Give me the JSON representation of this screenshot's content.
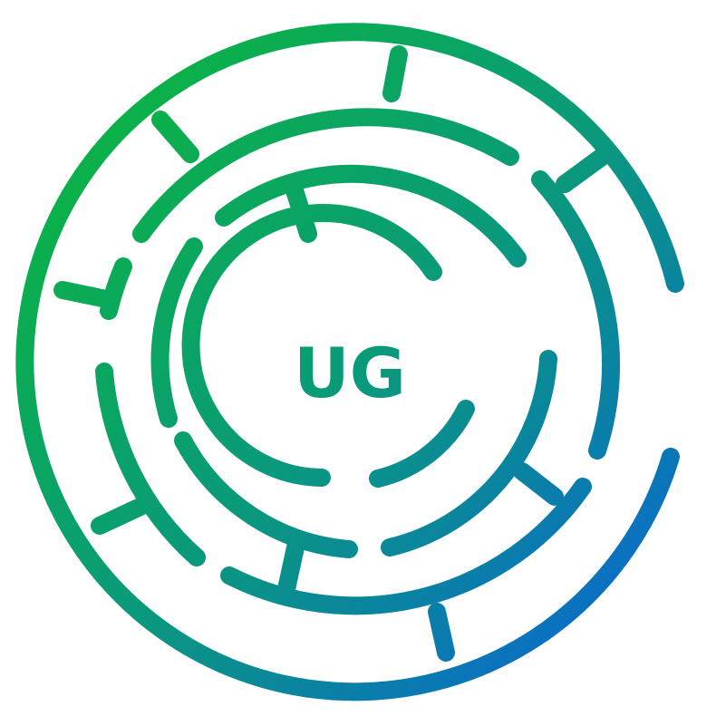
{
  "logo": {
    "monogram": "UG",
    "colors": {
      "green": "#0bb04a",
      "teal": "#0a9a7a",
      "blue": "#0a6fc4"
    }
  }
}
